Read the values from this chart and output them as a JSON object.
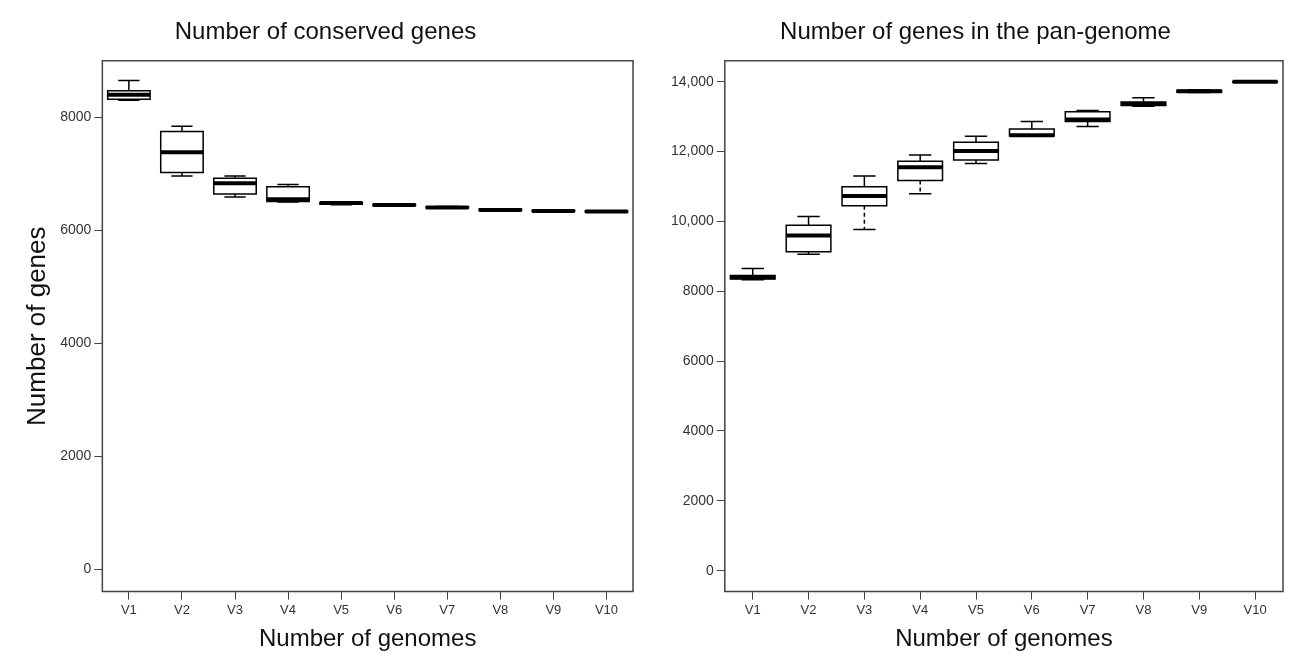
{
  "chart_data": [
    {
      "type": "box",
      "title": "Number of conserved genes",
      "xlabel": "Number of genomes",
      "ylabel": "Number of genes",
      "categories": [
        "V1",
        "V2",
        "V3",
        "V4",
        "V5",
        "V6",
        "V7",
        "V8",
        "V9",
        "V10"
      ],
      "ylim": [
        -400,
        9000
      ],
      "yticks": [
        0,
        2000,
        4000,
        6000,
        8000
      ],
      "grid": false,
      "legend": false,
      "boxes": [
        {
          "low": 8300,
          "q1": 8320,
          "median": 8400,
          "q3": 8470,
          "high": 8650
        },
        {
          "low": 6960,
          "q1": 7020,
          "median": 7380,
          "q3": 7750,
          "high": 7840
        },
        {
          "low": 6590,
          "q1": 6640,
          "median": 6830,
          "q3": 6920,
          "high": 6960
        },
        {
          "low": 6500,
          "q1": 6510,
          "median": 6550,
          "q3": 6770,
          "high": 6810
        },
        {
          "low": 6450,
          "q1": 6460,
          "median": 6480,
          "q3": 6490,
          "high": 6500
        },
        {
          "low": 6430,
          "q1": 6435,
          "median": 6445,
          "q3": 6460,
          "high": 6465
        },
        {
          "low": 6390,
          "q1": 6395,
          "median": 6400,
          "q3": 6415,
          "high": 6420
        },
        {
          "low": 6345,
          "q1": 6350,
          "median": 6360,
          "q3": 6375,
          "high": 6380
        },
        {
          "low": 6330,
          "q1": 6335,
          "median": 6340,
          "q3": 6355,
          "high": 6360
        },
        {
          "low": 6320,
          "q1": 6322,
          "median": 6330,
          "q3": 6338,
          "high": 6340
        }
      ]
    },
    {
      "type": "box",
      "title": "Number of genes in the pan-genome",
      "xlabel": "Number of genomes",
      "categories": [
        "V1",
        "V2",
        "V3",
        "V4",
        "V5",
        "V6",
        "V7",
        "V8",
        "V9",
        "V10"
      ],
      "ylim": [
        -600,
        14600
      ],
      "yticks": [
        0,
        2000,
        4000,
        6000,
        8000,
        {
          "value": 10000,
          "label": "10,000"
        },
        {
          "value": 12000,
          "label": "12,000"
        },
        {
          "value": 14000,
          "label": "14,000"
        }
      ],
      "grid": false,
      "legend": false,
      "boxes": [
        {
          "low": 8330,
          "q1": 8350,
          "median": 8400,
          "q3": 8450,
          "high": 8650
        },
        {
          "low": 9060,
          "q1": 9130,
          "median": 9600,
          "q3": 9890,
          "high": 10140
        },
        {
          "low": 9770,
          "q1": 10450,
          "median": 10730,
          "q3": 10990,
          "high": 11300
        },
        {
          "low": 10790,
          "q1": 11170,
          "median": 11550,
          "q3": 11720,
          "high": 11900
        },
        {
          "low": 11660,
          "q1": 11760,
          "median": 12020,
          "q3": 12270,
          "high": 12440
        },
        {
          "low": 12440,
          "q1": 12450,
          "median": 12470,
          "q3": 12650,
          "high": 12860
        },
        {
          "low": 12720,
          "q1": 12860,
          "median": 12920,
          "q3": 13140,
          "high": 13180
        },
        {
          "low": 13300,
          "q1": 13320,
          "median": 13360,
          "q3": 13420,
          "high": 13540
        },
        {
          "low": 13690,
          "q1": 13700,
          "median": 13730,
          "q3": 13760,
          "high": 13770
        },
        {
          "low": 13985,
          "q1": 13990,
          "median": 14000,
          "q3": 14010,
          "high": 14015
        }
      ]
    }
  ]
}
